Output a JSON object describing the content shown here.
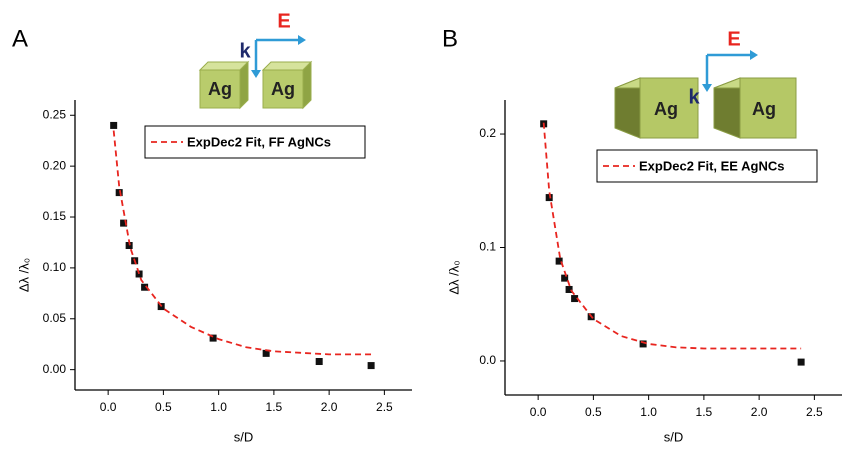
{
  "chart_data": [
    {
      "type": "scatter",
      "panel_label": "A",
      "x_label": "s/D",
      "y_label": "Δλ /λ₀",
      "inset": {
        "cube_labels": [
          "Ag",
          "Ag"
        ],
        "k": "k",
        "E": "E"
      },
      "xlim": [
        -0.3,
        2.75
      ],
      "ylim": [
        -0.02,
        0.265
      ],
      "xticks": [
        {
          "value": 0,
          "label": "0.0"
        },
        0.5,
        {
          "value": 1,
          "label": "1.0"
        },
        1.5,
        {
          "value": 2,
          "label": "2.0"
        },
        2.5
      ],
      "yticks": [
        {
          "value": 0,
          "label": "0.00"
        },
        0.05,
        {
          "value": 0.1,
          "label": "0.10"
        },
        0.15,
        {
          "value": 0.2,
          "label": "0.20"
        },
        0.25
      ],
      "series": [
        {
          "color": "#111111",
          "mode": "markers",
          "x": [
            0.05,
            0.1,
            0.14,
            0.19,
            0.24,
            0.28,
            0.33,
            0.48,
            0.95,
            1.43,
            1.91,
            2.38
          ],
          "values": [
            0.24,
            0.174,
            0.144,
            0.122,
            0.107,
            0.094,
            0.081,
            0.062,
            0.031,
            0.016,
            0.008,
            0.004
          ]
        },
        {
          "name": "ExpDec2 Fit, FF AgNCs",
          "color": "#e8251f",
          "mode": "dashed-line",
          "x": [
            0.05,
            0.1,
            0.2,
            0.3,
            0.5,
            0.75,
            1.0,
            1.25,
            1.5,
            2.0,
            2.38
          ],
          "values": [
            0.235,
            0.18,
            0.12,
            0.088,
            0.06,
            0.042,
            0.03,
            0.022,
            0.018,
            0.015,
            0.015
          ]
        }
      ]
    },
    {
      "type": "scatter",
      "panel_label": "B",
      "x_label": "s/D",
      "y_label": "Δλ /λ₀",
      "inset": {
        "cube_labels": [
          "Ag",
          "Ag"
        ],
        "k": "k",
        "E": "E"
      },
      "xlim": [
        -0.3,
        2.75
      ],
      "ylim": [
        -0.03,
        0.23
      ],
      "xticks": [
        {
          "value": 0,
          "label": "0.0"
        },
        0.5,
        {
          "value": 1,
          "label": "1.0"
        },
        1.5,
        {
          "value": 2,
          "label": "2.0"
        },
        2.5
      ],
      "yticks": [
        {
          "value": 0,
          "label": "0.0"
        },
        0.1,
        0.2
      ],
      "series": [
        {
          "color": "#111111",
          "mode": "markers",
          "x": [
            0.05,
            0.1,
            0.19,
            0.24,
            0.28,
            0.33,
            0.48,
            0.95,
            2.38
          ],
          "values": [
            0.209,
            0.144,
            0.088,
            0.073,
            0.063,
            0.055,
            0.039,
            0.015,
            -0.001
          ]
        },
        {
          "name": "ExpDec2 Fit, EE AgNCs",
          "color": "#e8251f",
          "mode": "dashed-line",
          "x": [
            0.05,
            0.1,
            0.2,
            0.3,
            0.5,
            0.75,
            1.0,
            1.25,
            1.5,
            2.0,
            2.38
          ],
          "values": [
            0.21,
            0.15,
            0.09,
            0.062,
            0.037,
            0.022,
            0.015,
            0.012,
            0.011,
            0.011,
            0.011
          ]
        }
      ]
    }
  ]
}
